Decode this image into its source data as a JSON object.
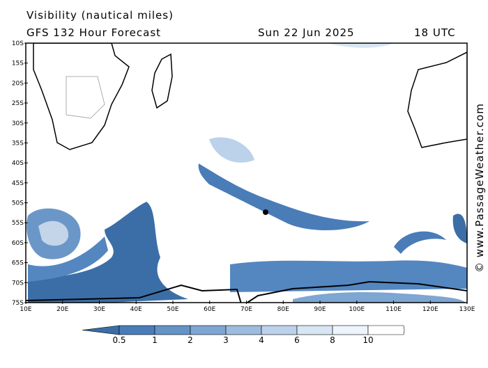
{
  "header": {
    "title": "Visibility (nautical miles)",
    "model": "GFS 132 Hour Forecast",
    "date": "Sun 22 Jun 2025",
    "time": "18 UTC"
  },
  "map": {
    "lat_labels": [
      "10S",
      "15S",
      "20S",
      "25S",
      "30S",
      "35S",
      "40S",
      "45S",
      "50S",
      "55S",
      "60S",
      "65S",
      "70S",
      "75S"
    ],
    "lon_labels": [
      "10E",
      "20E",
      "30E",
      "40E",
      "50E",
      "60E",
      "70E",
      "80E",
      "90E",
      "100E",
      "110E",
      "120E",
      "130E"
    ]
  },
  "colorbar": {
    "labels": [
      "0.5",
      "1",
      "2",
      "3",
      "4",
      "6",
      "8",
      "10"
    ],
    "colors": [
      "#3b6ea7",
      "#4a7cb8",
      "#6593c6",
      "#7ea6d2",
      "#9dbcde",
      "#bcd2ea",
      "#d8e5f3",
      "#eef4fb",
      "#ffffff"
    ]
  },
  "watermark": "© www.PassageWeather.com"
}
